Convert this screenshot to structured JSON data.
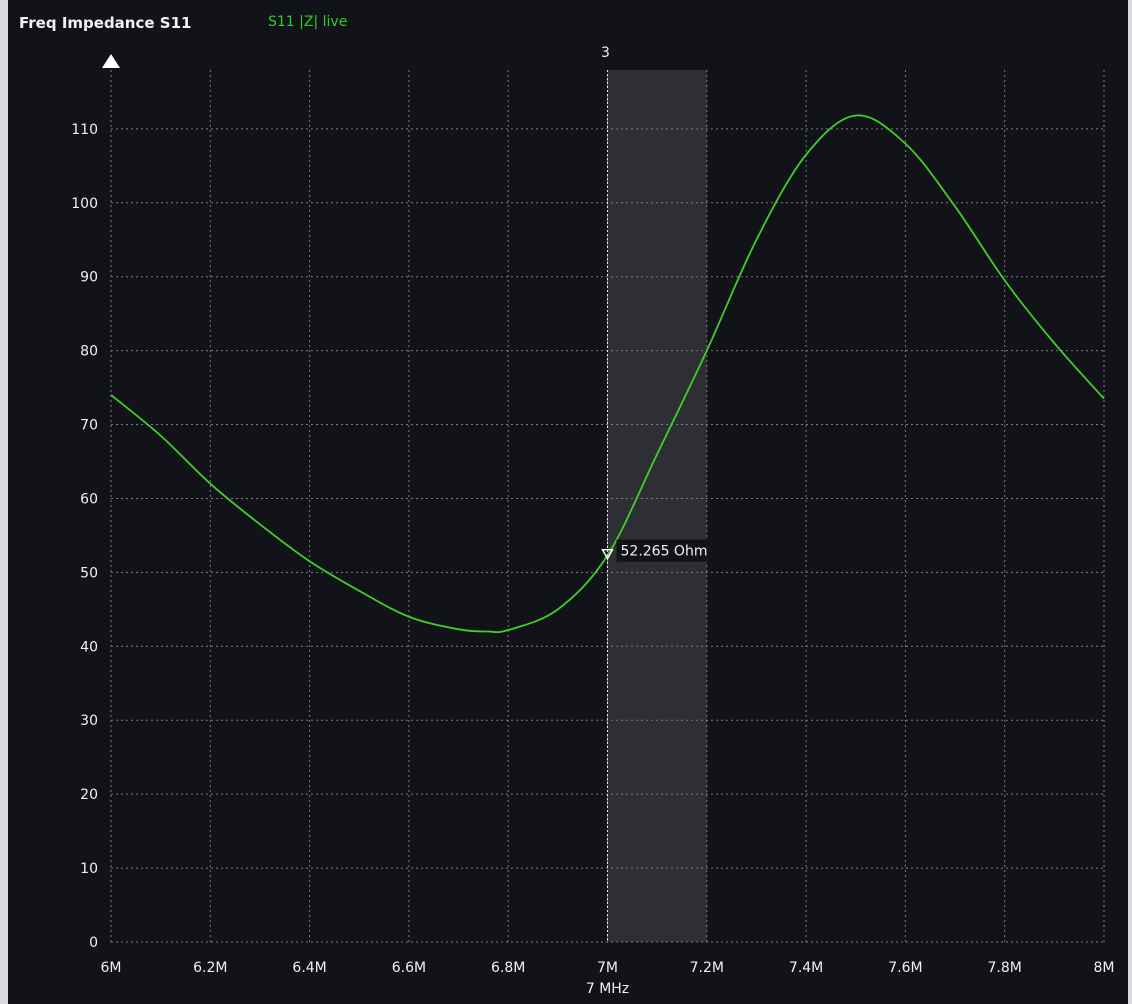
{
  "header": {
    "title": "Freq Impedance S11",
    "trace_label": "S11 |Z| live"
  },
  "colors": {
    "background": "#121318",
    "trace": "#3fcf2a",
    "grid": "#7a7d85",
    "band": "#2e2f35",
    "text": "#f0f0f0"
  },
  "marker": {
    "id": "3",
    "freq_mhz": 7.0,
    "value_label": "52.265 Ohm",
    "value": 52.265,
    "band_end_mhz": 7.2
  },
  "chart_data": {
    "type": "line",
    "title": "",
    "xlabel": "7 MHz",
    "ylabel": "",
    "xlim": [
      6.0,
      8.0
    ],
    "ylim": [
      0,
      120
    ],
    "grid": true,
    "x_ticks": [
      6.0,
      6.2,
      6.4,
      6.6,
      6.8,
      7.0,
      7.2,
      7.4,
      7.6,
      7.8,
      8.0
    ],
    "x_tick_labels": [
      "6M",
      "6.2M",
      "6.4M",
      "6.6M",
      "6.8M",
      "7M",
      "7.2M",
      "7.4M",
      "7.6M",
      "7.8M",
      "8M"
    ],
    "y_ticks": [
      0,
      10,
      20,
      30,
      40,
      50,
      60,
      70,
      80,
      90,
      100,
      110
    ],
    "y_tick_labels": [
      "0",
      "10",
      "20",
      "30",
      "40",
      "50",
      "60",
      "70",
      "80",
      "90",
      "100",
      "110"
    ],
    "series": [
      {
        "name": "S11 |Z| live",
        "x": [
          6.0,
          6.1,
          6.2,
          6.3,
          6.4,
          6.5,
          6.6,
          6.7,
          6.76,
          6.8,
          6.9,
          7.0,
          7.1,
          7.2,
          7.3,
          7.4,
          7.5,
          7.6,
          7.7,
          7.8,
          7.9,
          8.0
        ],
        "y": [
          74,
          68.5,
          62,
          56.5,
          51.5,
          47.5,
          44,
          42.3,
          42,
          42.2,
          45,
          52.3,
          66,
          80,
          95,
          106.5,
          111.8,
          108,
          99.5,
          89.5,
          81,
          73.5
        ]
      }
    ]
  }
}
